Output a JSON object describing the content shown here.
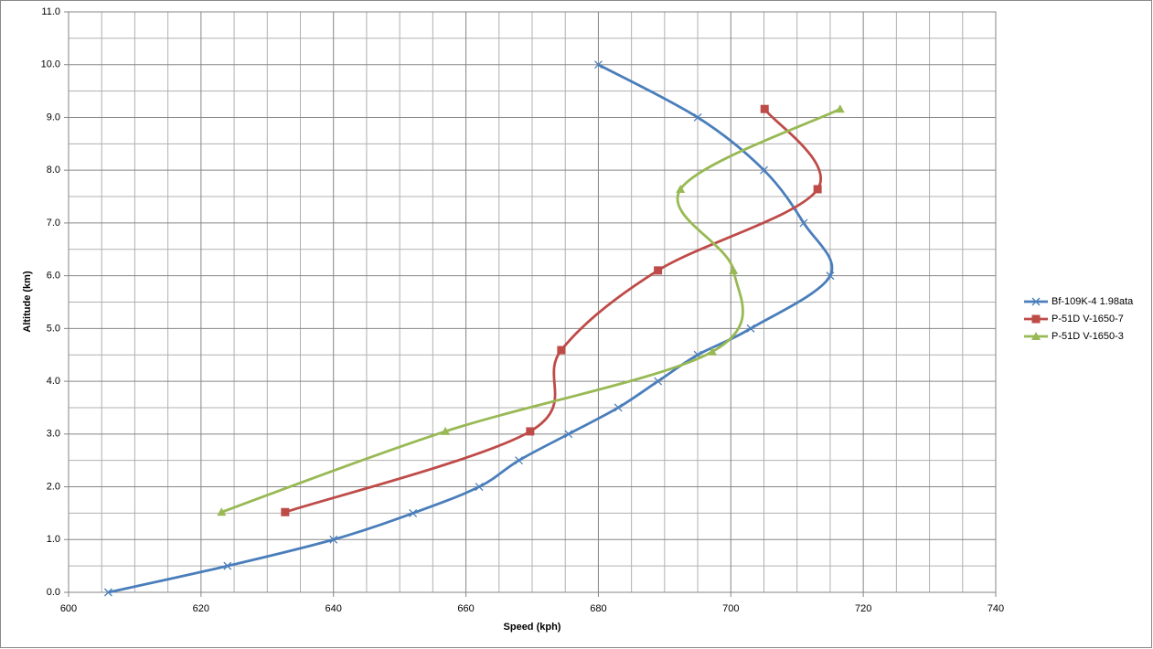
{
  "chart_data": {
    "type": "scatter",
    "smooth": true,
    "x_label": "Speed (kph)",
    "y_label": "Altitude (km)",
    "xlim": [
      600,
      740
    ],
    "xticks": [
      600,
      620,
      640,
      660,
      680,
      700,
      720,
      740
    ],
    "ylim": [
      0,
      11
    ],
    "yticks": [
      {
        "value": 0,
        "label": "0.0"
      },
      {
        "value": 1,
        "label": "1.0"
      },
      {
        "value": 2,
        "label": "2.0"
      },
      {
        "value": 3,
        "label": "3.0"
      },
      {
        "value": 4,
        "label": "4.0"
      },
      {
        "value": 5,
        "label": "5.0"
      },
      {
        "value": 6,
        "label": "6.0"
      },
      {
        "value": 7,
        "label": "7.0"
      },
      {
        "value": 8,
        "label": "8.0"
      },
      {
        "value": 9,
        "label": "9.0"
      },
      {
        "value": 10,
        "label": "10.0"
      },
      {
        "value": 11,
        "label": "11.0"
      }
    ],
    "grid": true,
    "legend": "right",
    "series": [
      {
        "name": "Bf-109K-4 1.98ata",
        "color": "#4a7ebb",
        "marker": "x",
        "x": [
          606,
          624,
          640,
          652,
          662,
          668,
          675.5,
          683,
          689,
          695,
          703,
          715,
          711,
          705,
          695,
          680
        ],
        "values": [
          0,
          0.5,
          1.0,
          1.5,
          2.0,
          2.5,
          3.0,
          3.5,
          4.0,
          4.5,
          5.0,
          6.0,
          7.0,
          8.0,
          9.0,
          10.0
        ]
      },
      {
        "name": "P-51D V-1650-7",
        "color": "#be4b48",
        "marker": "square",
        "x": [
          632.7,
          669.7,
          674.4,
          689.0,
          713.1,
          705.1
        ],
        "values": [
          1.52,
          3.05,
          4.59,
          6.1,
          7.64,
          9.16
        ]
      },
      {
        "name": "P-51D V-1650-3",
        "color": "#98b954",
        "marker": "triangle",
        "x": [
          623.1,
          656.9,
          697.2,
          700.4,
          692.4,
          716.5
        ],
        "values": [
          1.52,
          3.05,
          4.56,
          6.1,
          7.64,
          9.16
        ]
      }
    ]
  }
}
